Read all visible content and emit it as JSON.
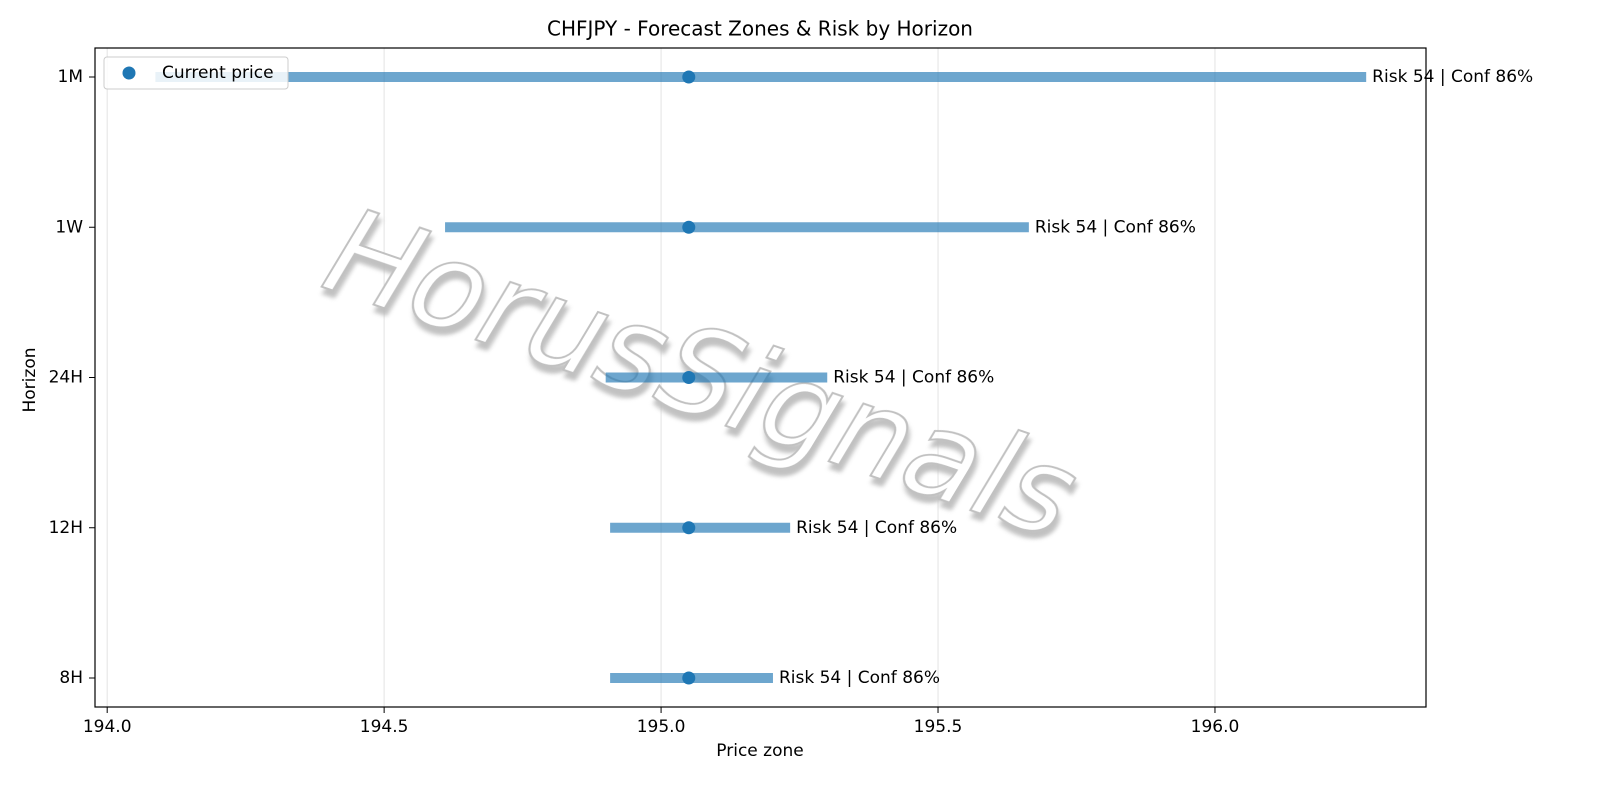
{
  "chart_data": {
    "type": "range",
    "title": "CHFJPY - Forecast Zones & Risk by Horizon",
    "xlabel": "Price zone",
    "ylabel": "Horizon",
    "watermark": "HorusSignals",
    "categories": [
      "8H",
      "12H",
      "24H",
      "1W",
      "1M"
    ],
    "low": [
      194.908,
      194.908,
      194.9,
      194.61,
      194.087
    ],
    "high": [
      195.202,
      195.233,
      195.3,
      195.664,
      196.273
    ],
    "bar_color": "#1f77b4",
    "series": [
      {
        "name": "Current price",
        "color": "#1f77b4",
        "values": [
          195.05,
          195.05,
          195.05,
          195.05,
          195.05
        ]
      }
    ],
    "annotations": [
      "Risk 54 | Conf 86%",
      "Risk 54 | Conf 86%",
      "Risk 54 | Conf 86%",
      "Risk 54 | Conf 86%",
      "Risk 54 | Conf 86%"
    ],
    "xlim": [
      193.978,
      196.381
    ],
    "xticks": [
      {
        "value": 194.0,
        "label": "194.0"
      },
      194.5,
      {
        "value": 195.0,
        "label": "195.0"
      },
      195.5,
      {
        "value": 196.0,
        "label": "196.0"
      }
    ],
    "grid": true,
    "legend": "upper-left"
  }
}
